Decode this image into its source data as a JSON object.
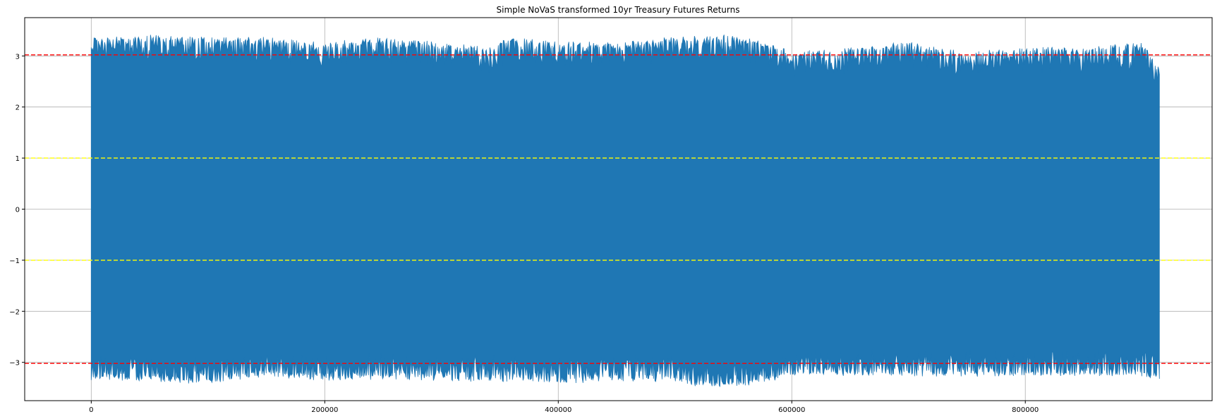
{
  "chart_data": {
    "type": "line",
    "title": "Simple NoVaS transformed 10yr Treasury Futures Returns",
    "xlabel": "",
    "ylabel": "",
    "xlim": [
      -57000,
      960000
    ],
    "ylim": [
      -3.75,
      3.75
    ],
    "x_ticks": [
      0,
      200000,
      400000,
      600000,
      800000
    ],
    "x_tick_labels": [
      "0",
      "200000",
      "400000",
      "600000",
      "800000"
    ],
    "y_ticks": [
      3,
      2,
      1,
      0,
      -1,
      -2,
      -3
    ],
    "y_tick_labels": [
      "3",
      "2",
      "1",
      "0",
      "−1",
      "−2",
      "−3"
    ],
    "grid": true,
    "series": [
      {
        "color": "#1f77b4",
        "x_range": [
          0,
          915000
        ],
        "upper_envelope": [
          [
            0,
            3.3
          ],
          [
            20000,
            3.3
          ],
          [
            60000,
            3.35
          ],
          [
            100000,
            3.3
          ],
          [
            150000,
            3.3
          ],
          [
            200000,
            3.2
          ],
          [
            250000,
            3.3
          ],
          [
            300000,
            3.2
          ],
          [
            340000,
            3.1
          ],
          [
            360000,
            3.3
          ],
          [
            400000,
            3.2
          ],
          [
            450000,
            3.2
          ],
          [
            500000,
            3.3
          ],
          [
            550000,
            3.35
          ],
          [
            580000,
            3.2
          ],
          [
            600000,
            3.0
          ],
          [
            650000,
            3.1
          ],
          [
            700000,
            3.2
          ],
          [
            750000,
            3.0
          ],
          [
            800000,
            3.1
          ],
          [
            850000,
            3.1
          ],
          [
            900000,
            3.2
          ],
          [
            915000,
            2.7
          ]
        ],
        "lower_envelope": [
          [
            0,
            -3.3
          ],
          [
            50000,
            -3.3
          ],
          [
            100000,
            -3.35
          ],
          [
            150000,
            -3.2
          ],
          [
            200000,
            -3.3
          ],
          [
            250000,
            -3.25
          ],
          [
            300000,
            -3.3
          ],
          [
            350000,
            -3.3
          ],
          [
            400000,
            -3.35
          ],
          [
            450000,
            -3.3
          ],
          [
            500000,
            -3.3
          ],
          [
            520000,
            -3.4
          ],
          [
            560000,
            -3.4
          ],
          [
            600000,
            -3.2
          ],
          [
            650000,
            -3.2
          ],
          [
            700000,
            -3.2
          ],
          [
            750000,
            -3.2
          ],
          [
            800000,
            -3.2
          ],
          [
            850000,
            -3.2
          ],
          [
            900000,
            -3.2
          ],
          [
            915000,
            -3.3
          ]
        ]
      }
    ],
    "reference_lines": [
      {
        "y": 3.02,
        "color": "#ff0000",
        "style": "dashed"
      },
      {
        "y": 1.0,
        "color": "#ffff00",
        "style": "dashed"
      },
      {
        "y": -1.0,
        "color": "#ffff00",
        "style": "dashed"
      },
      {
        "y": -3.02,
        "color": "#ff0000",
        "style": "dashed"
      }
    ],
    "axis_color": "#000000",
    "grid_color": "#b0b0b0"
  }
}
